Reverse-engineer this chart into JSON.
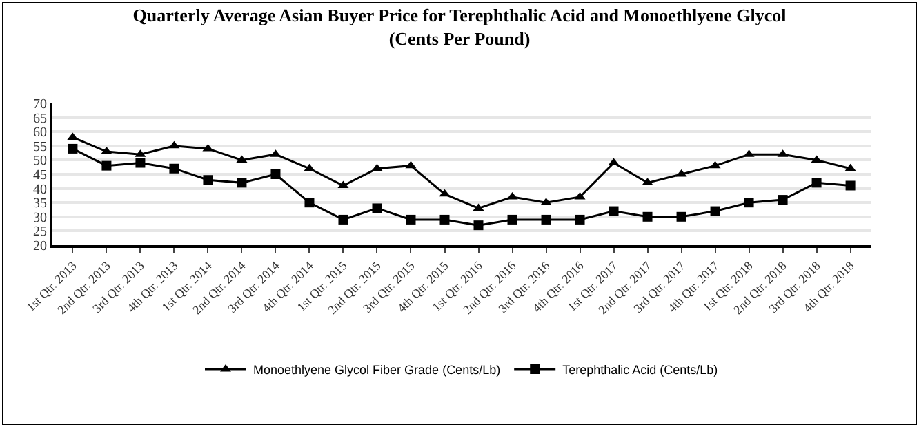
{
  "chart_data": {
    "type": "line",
    "title": "Quarterly Average Asian Buyer Price for Terephthalic Acid and Monoethlyene Glycol\n(Cents Per Pound)",
    "categories": [
      "1st Qtr. 2013",
      "2nd Qtr. 2013",
      "3rd Qtr. 2013",
      "4th Qtr. 2013",
      "1st Qtr. 2014",
      "2nd Qtr. 2014",
      "3rd Qtr. 2014",
      "4th Qtr. 2014",
      "1st Qtr. 2015",
      "2nd Qtr. 2015",
      "3rd Qtr. 2015",
      "4th Qtr. 2015",
      "1st Qtr. 2016",
      "2nd Qtr. 2016",
      "3rd Qtr. 2016",
      "4th Qtr. 2016",
      "1st Qtr. 2017",
      "2nd Qtr. 2017",
      "3rd Qtr. 2017",
      "4th Qtr. 2017",
      "1st Qtr. 2018",
      "2nd Qtr. 2018",
      "3rd Qtr. 2018",
      "4th Qtr. 2018"
    ],
    "series": [
      {
        "name": "Monoethlyene Glycol Fiber Grade (Cents/Lb)",
        "color": "#000000",
        "marker": "triangle",
        "values": [
          58,
          53,
          52,
          55,
          54,
          50,
          52,
          47,
          41,
          47,
          48,
          38,
          33,
          37,
          35,
          37,
          49,
          42,
          45,
          48,
          52,
          52,
          50,
          47
        ]
      },
      {
        "name": "Terephthalic Acid (Cents/Lb)",
        "color": "#000000",
        "marker": "square",
        "values": [
          54,
          48,
          49,
          47,
          43,
          42,
          45,
          35,
          29,
          33,
          29,
          29,
          27,
          29,
          29,
          29,
          32,
          30,
          30,
          32,
          35,
          36,
          42,
          41
        ]
      }
    ],
    "ylim": [
      20,
      70
    ],
    "yticks": [
      20,
      25,
      30,
      35,
      40,
      45,
      50,
      55,
      60,
      65,
      70
    ],
    "grid": "y",
    "legend": "bottom",
    "line_style": "solid"
  }
}
